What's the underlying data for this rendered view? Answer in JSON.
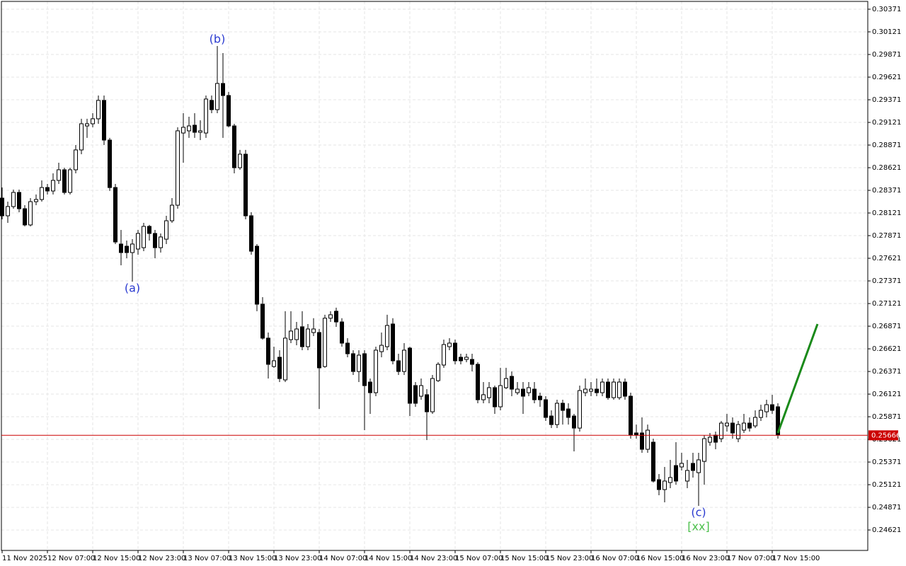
{
  "chart_data": {
    "type": "candlestick",
    "categories": [
      "11 Nov 2025",
      null,
      null,
      null,
      null,
      null,
      null,
      null,
      "12 Nov 07:00",
      null,
      null,
      null,
      null,
      null,
      null,
      null,
      "12 Nov 15:00",
      null,
      null,
      null,
      null,
      null,
      null,
      null,
      "12 Nov 23:00",
      null,
      null,
      null,
      null,
      null,
      null,
      null,
      "13 Nov 07:00",
      null,
      null,
      null,
      null,
      null,
      null,
      null,
      "13 Nov 15:00",
      null,
      null,
      null,
      null,
      null,
      null,
      null,
      "13 Nov 23:00",
      null,
      null,
      null,
      null,
      null,
      null,
      null,
      "14 Nov 07:00",
      null,
      null,
      null,
      null,
      null,
      null,
      null,
      "14 Nov 15:00",
      null,
      null,
      null,
      null,
      null,
      null,
      null,
      "14 Nov 23:00",
      null,
      null,
      null,
      null,
      null,
      null,
      null,
      "15 Nov 07:00",
      null,
      null,
      null,
      null,
      null,
      null,
      null,
      "15 Nov 15:00",
      null,
      null,
      null,
      null,
      null,
      null,
      null,
      "15 Nov 23:00",
      null,
      null,
      null,
      null,
      null,
      null,
      null,
      "16 Nov 07:00",
      null,
      null,
      null,
      null,
      null,
      null,
      null,
      "16 Nov 15:00",
      null,
      null,
      null,
      null,
      null,
      null,
      null,
      "16 Nov 23:00",
      null,
      null,
      null,
      null,
      null,
      null,
      null,
      "17 Nov 07:00",
      null,
      null,
      null,
      null,
      null,
      null,
      null,
      "17 Nov 15:00",
      null
    ],
    "open": [
      0.28285,
      0.2809,
      0.28192,
      0.28348,
      0.28168,
      0.27989,
      0.28246,
      0.2827,
      0.28402,
      0.28364,
      0.28481,
      0.28598,
      0.28348,
      0.28598,
      0.28817,
      0.29082,
      0.29106,
      0.29161,
      0.29364,
      0.28926,
      0.28402,
      0.27778,
      0.27754,
      0.27684,
      0.27723,
      0.27738,
      0.27973,
      0.27895,
      0.27738,
      0.27832,
      0.28035,
      0.28207,
      0.29004,
      0.29028,
      0.2909,
      0.29012,
      0.29004,
      0.29364,
      0.29262,
      0.29551,
      0.29418,
      0.29082,
      0.28621,
      0.2877,
      0.2809,
      0.27754,
      0.27114,
      0.26739,
      0.26426,
      0.26528,
      0.26278,
      0.26723,
      0.26723,
      0.26864,
      0.26645,
      0.26801,
      0.26801,
      0.26426,
      0.26959,
      0.27036,
      0.26918,
      0.26684,
      0.26567,
      0.26371,
      0.26567,
      0.26254,
      0.26137,
      0.2659,
      0.26645,
      0.26895,
      0.26489,
      0.26371,
      0.26629,
      0.26215,
      0.26098,
      0.26114,
      0.25926,
      0.2627,
      0.26442,
      0.26645,
      0.26684,
      0.26528,
      0.26504,
      0.26504,
      0.2645,
      0.26059,
      0.26082,
      0.26192,
      0.25981,
      0.26192,
      0.26317,
      0.26137,
      0.26176,
      0.26137,
      0.26176,
      0.26098,
      0.26059,
      0.25879,
      0.25785,
      0.2602,
      0.25957,
      0.25879,
      0.25746,
      0.26137,
      0.26153,
      0.26176,
      0.26137,
      0.26254,
      0.26082,
      0.26082,
      0.26254,
      0.26098,
      0.25692,
      0.25692,
      0.25512,
      0.2559,
      0.25176,
      0.25067,
      0.25145,
      0.25332,
      0.25317,
      0.25161,
      0.25356,
      0.25254,
      0.25379,
      0.2559,
      0.25668,
      0.25629,
      0.2577,
      0.25801,
      0.25629,
      0.25723,
      0.25801,
      0.2577,
      0.25864,
      0.25926,
      0.26004,
      0.25981
    ],
    "high": [
      0.28402,
      0.28246,
      0.28379,
      0.28379,
      0.28207,
      0.28285,
      0.28325,
      0.28481,
      0.28442,
      0.28559,
      0.28676,
      0.28621,
      0.28621,
      0.28871,
      0.29161,
      0.29161,
      0.29223,
      0.29418,
      0.29418,
      0.2895,
      0.28442,
      0.27934,
      0.27817,
      0.27832,
      0.27934,
      0.28012,
      0.27989,
      0.27934,
      0.27895,
      0.2809,
      0.28285,
      0.29067,
      0.29223,
      0.29184,
      0.29223,
      0.29145,
      0.29418,
      0.29418,
      0.29965,
      0.29887,
      0.29457,
      0.29106,
      0.28817,
      0.28817,
      0.28129,
      0.27778,
      0.27192,
      0.26801,
      0.26645,
      0.26606,
      0.27036,
      0.27036,
      0.26918,
      0.27036,
      0.26895,
      0.26959,
      0.2684,
      0.26997,
      0.27036,
      0.27075,
      0.26959,
      0.26739,
      0.26606,
      0.26606,
      0.26606,
      0.26293,
      0.26645,
      0.26801,
      0.26997,
      0.26959,
      0.26567,
      0.26684,
      0.26645,
      0.26254,
      0.26293,
      0.26176,
      0.26332,
      0.26473,
      0.26723,
      0.26739,
      0.26723,
      0.26567,
      0.26567,
      0.26567,
      0.26473,
      0.26254,
      0.26254,
      0.26215,
      0.26411,
      0.26411,
      0.26371,
      0.26254,
      0.26254,
      0.26254,
      0.26254,
      0.26137,
      0.26098,
      0.25942,
      0.26059,
      0.26059,
      0.2602,
      0.25903,
      0.26215,
      0.26293,
      0.26254,
      0.26293,
      0.26293,
      0.26293,
      0.26293,
      0.26293,
      0.26293,
      0.26137,
      0.25785,
      0.25864,
      0.25785,
      0.25629,
      0.25239,
      0.25317,
      0.25395,
      0.2559,
      0.25473,
      0.25395,
      0.25473,
      0.25473,
      0.25668,
      0.25692,
      0.25707,
      0.25825,
      0.25903,
      0.25864,
      0.25825,
      0.25903,
      0.25864,
      0.25942,
      0.26004,
      0.26059,
      0.26114,
      0.2602
    ],
    "low": [
      0.28051,
      0.28012,
      0.28168,
      0.28129,
      0.27973,
      0.27973,
      0.28207,
      0.28246,
      0.28325,
      0.28325,
      0.28442,
      0.28325,
      0.28325,
      0.28559,
      0.2877,
      0.2895,
      0.29067,
      0.29106,
      0.28871,
      0.28364,
      0.27778,
      0.27543,
      0.27621,
      0.27363,
      0.2766,
      0.27699,
      0.27817,
      0.27621,
      0.27684,
      0.27778,
      0.28012,
      0.28168,
      0.28676,
      0.2895,
      0.2895,
      0.28926,
      0.2895,
      0.29223,
      0.29223,
      0.2895,
      0.29067,
      0.28559,
      0.28598,
      0.28051,
      0.2766,
      0.27036,
      0.26723,
      0.26293,
      0.26411,
      0.26254,
      0.26254,
      0.26684,
      0.2666,
      0.26606,
      0.26606,
      0.26762,
      0.25957,
      0.26411,
      0.26918,
      0.26864,
      0.26645,
      0.26528,
      0.26332,
      0.26254,
      0.25723,
      0.25903,
      0.26098,
      0.26528,
      0.26606,
      0.2645,
      0.26332,
      0.26332,
      0.25879,
      0.25981,
      0.26059,
      0.25614,
      0.25903,
      0.26254,
      0.26411,
      0.26606,
      0.2645,
      0.2645,
      0.26473,
      0.26371,
      0.2602,
      0.2602,
      0.2602,
      0.25903,
      0.25942,
      0.26176,
      0.26098,
      0.26114,
      0.25903,
      0.26098,
      0.2602,
      0.25981,
      0.25825,
      0.25746,
      0.25746,
      0.25785,
      0.25785,
      0.25489,
      0.25707,
      0.26098,
      0.26098,
      0.26098,
      0.26098,
      0.26059,
      0.26059,
      0.26059,
      0.26059,
      0.25629,
      0.25629,
      0.25473,
      0.25473,
      0.25145,
      0.25004,
      0.24926,
      0.25082,
      0.25121,
      0.25278,
      0.25082,
      0.252,
      0.24887,
      0.25121,
      0.25551,
      0.25512,
      0.2559,
      0.25707,
      0.25629,
      0.2559,
      0.25692,
      0.25707,
      0.25746,
      0.25825,
      0.25864,
      0.25903,
      0.25629
    ],
    "close": [
      0.2809,
      0.28192,
      0.28348,
      0.28168,
      0.27989,
      0.28246,
      0.2827,
      0.28402,
      0.28364,
      0.28481,
      0.28598,
      0.28348,
      0.28598,
      0.28817,
      0.29106,
      0.29106,
      0.29161,
      0.29364,
      0.28926,
      0.28402,
      0.27801,
      0.27684,
      0.27684,
      0.27778,
      0.27895,
      0.27973,
      0.27895,
      0.27738,
      0.27856,
      0.28035,
      0.28207,
      0.29028,
      0.29067,
      0.29082,
      0.29012,
      0.29028,
      0.29379,
      0.29262,
      0.29551,
      0.29418,
      0.29082,
      0.28621,
      0.2877,
      0.2809,
      0.27699,
      0.27114,
      0.26739,
      0.2645,
      0.26489,
      0.26293,
      0.26739,
      0.26817,
      0.2684,
      0.26645,
      0.2684,
      0.2684,
      0.26411,
      0.26959,
      0.26997,
      0.26918,
      0.26684,
      0.26567,
      0.26371,
      0.26551,
      0.26215,
      0.26137,
      0.26606,
      0.2666,
      0.26879,
      0.26489,
      0.26371,
      0.26606,
      0.2602,
      0.2602,
      0.26215,
      0.25926,
      0.26293,
      0.2645,
      0.26668,
      0.26684,
      0.26489,
      0.26489,
      0.26528,
      0.2645,
      0.26059,
      0.26114,
      0.26192,
      0.25981,
      0.26215,
      0.26293,
      0.26176,
      0.26176,
      0.26098,
      0.26192,
      0.26059,
      0.26059,
      0.25864,
      0.25785,
      0.2602,
      0.25942,
      0.25864,
      0.25746,
      0.2616,
      0.26176,
      0.26176,
      0.26137,
      0.26254,
      0.26082,
      0.26254,
      0.26254,
      0.26098,
      0.25668,
      0.25668,
      0.25512,
      0.25723,
      0.25161,
      0.25067,
      0.25161,
      0.252,
      0.25161,
      0.25356,
      0.25278,
      0.25278,
      0.25395,
      0.25629,
      0.25645,
      0.2559,
      0.25801,
      0.25801,
      0.25692,
      0.25785,
      0.25801,
      0.25746,
      0.25864,
      0.25942,
      0.26004,
      0.25942,
      0.25668
    ],
    "colors": {
      "up": "#ffffff",
      "down": "#000000"
    },
    "ylim": [
      0.24395,
      0.30457
    ],
    "yticks": [
      0.30371,
      0.30121,
      0.29871,
      0.29621,
      0.29371,
      0.29121,
      0.28871,
      0.28621,
      0.28371,
      0.28121,
      0.27871,
      0.27621,
      0.27371,
      0.27121,
      0.26871,
      0.26621,
      0.26371,
      0.26121,
      0.25871,
      0.25621,
      0.25371,
      0.25121,
      0.24871,
      0.24621
    ],
    "grid": true,
    "last_price": {
      "value": 0.25666,
      "color": "#cc0000"
    },
    "projection": {
      "x": [
        137,
        144
      ],
      "values": [
        0.25692,
        0.26895
      ],
      "color": "#1a8a1a"
    },
    "annotations": [
      {
        "text": "(a)",
        "index": 23,
        "anchor": "low",
        "color": "#2a3ad0"
      },
      {
        "text": "(b)",
        "index": 38,
        "anchor": "high",
        "color": "#2a3ad0"
      },
      {
        "text": "(c)",
        "index": 123,
        "anchor": "low",
        "color": "#2a3ad0"
      },
      {
        "text": "[xx]",
        "index": 123,
        "anchor": "low",
        "color": "#4cc04c"
      }
    ]
  }
}
